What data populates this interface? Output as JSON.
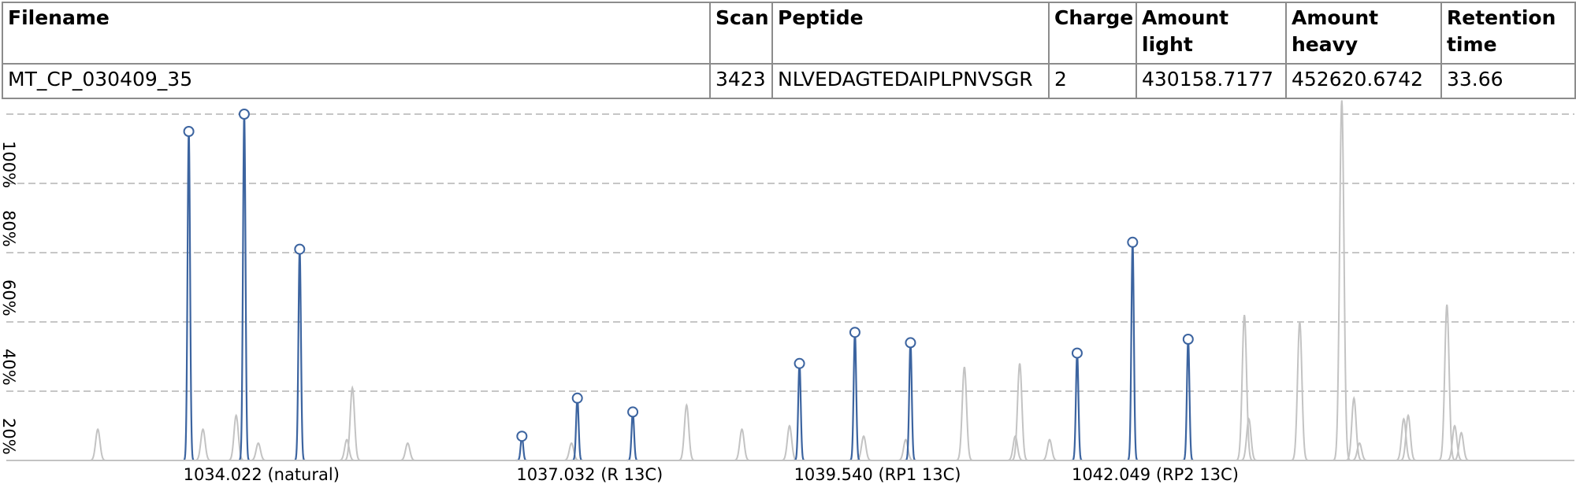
{
  "table": {
    "headers": [
      "Filename",
      "Scan",
      "Peptide",
      "Charge",
      "Amount light",
      "Amount heavy",
      "Retention time"
    ],
    "row": [
      "MT_CP_030409_35",
      "3423",
      "NLVEDAGTEDAIPLPNVSGR",
      "2",
      "430158.7177",
      "452620.6742",
      "33.66"
    ]
  },
  "chart_data": {
    "type": "line",
    "y_ticks": [
      "20%",
      "40%",
      "60%",
      "80%",
      "100%"
    ],
    "ylim": [
      0,
      100
    ],
    "grid": true,
    "x_labels": [
      {
        "x": 1034.022,
        "label": "1034.022 (natural)"
      },
      {
        "x": 1037.032,
        "label": "1037.032 (R 13C)"
      },
      {
        "x": 1039.54,
        "label": "1039.540 (RP1 13C)"
      },
      {
        "x": 1042.049,
        "label": "1042.049 (RP2 13C)"
      }
    ],
    "xlim": [
      1032.9,
      1046.3
    ],
    "series": [
      {
        "role": "matched_isotope_peaks",
        "color": "#3c64a0",
        "points": [
          {
            "x": 1034.022,
            "y": 95
          },
          {
            "x": 1034.523,
            "y": 100
          },
          {
            "x": 1035.024,
            "y": 61
          },
          {
            "x": 1037.032,
            "y": 7
          },
          {
            "x": 1037.533,
            "y": 18
          },
          {
            "x": 1038.034,
            "y": 14
          },
          {
            "x": 1039.54,
            "y": 28
          },
          {
            "x": 1040.041,
            "y": 37
          },
          {
            "x": 1040.543,
            "y": 34
          },
          {
            "x": 1042.049,
            "y": 31
          },
          {
            "x": 1042.55,
            "y": 63
          },
          {
            "x": 1043.052,
            "y": 35
          }
        ]
      },
      {
        "role": "background_spectrum",
        "color": "#c3c3c3",
        "peaks": [
          {
            "x": 1033.2,
            "y": 9
          },
          {
            "x": 1034.15,
            "y": 9
          },
          {
            "x": 1034.45,
            "y": 13
          },
          {
            "x": 1034.65,
            "y": 5
          },
          {
            "x": 1035.45,
            "y": 6
          },
          {
            "x": 1035.5,
            "y": 21
          },
          {
            "x": 1036.0,
            "y": 5
          },
          {
            "x": 1037.48,
            "y": 5
          },
          {
            "x": 1038.52,
            "y": 16
          },
          {
            "x": 1039.02,
            "y": 9
          },
          {
            "x": 1039.45,
            "y": 10
          },
          {
            "x": 1040.12,
            "y": 7
          },
          {
            "x": 1040.5,
            "y": 6
          },
          {
            "x": 1041.03,
            "y": 27
          },
          {
            "x": 1041.49,
            "y": 7
          },
          {
            "x": 1041.53,
            "y": 28
          },
          {
            "x": 1041.8,
            "y": 6
          },
          {
            "x": 1043.56,
            "y": 42
          },
          {
            "x": 1043.6,
            "y": 12
          },
          {
            "x": 1044.06,
            "y": 40
          },
          {
            "x": 1044.44,
            "y": 104
          },
          {
            "x": 1044.55,
            "y": 18
          },
          {
            "x": 1044.6,
            "y": 5
          },
          {
            "x": 1045.0,
            "y": 12
          },
          {
            "x": 1045.04,
            "y": 13
          },
          {
            "x": 1045.39,
            "y": 45
          },
          {
            "x": 1045.46,
            "y": 10
          },
          {
            "x": 1045.52,
            "y": 8
          }
        ]
      }
    ]
  }
}
